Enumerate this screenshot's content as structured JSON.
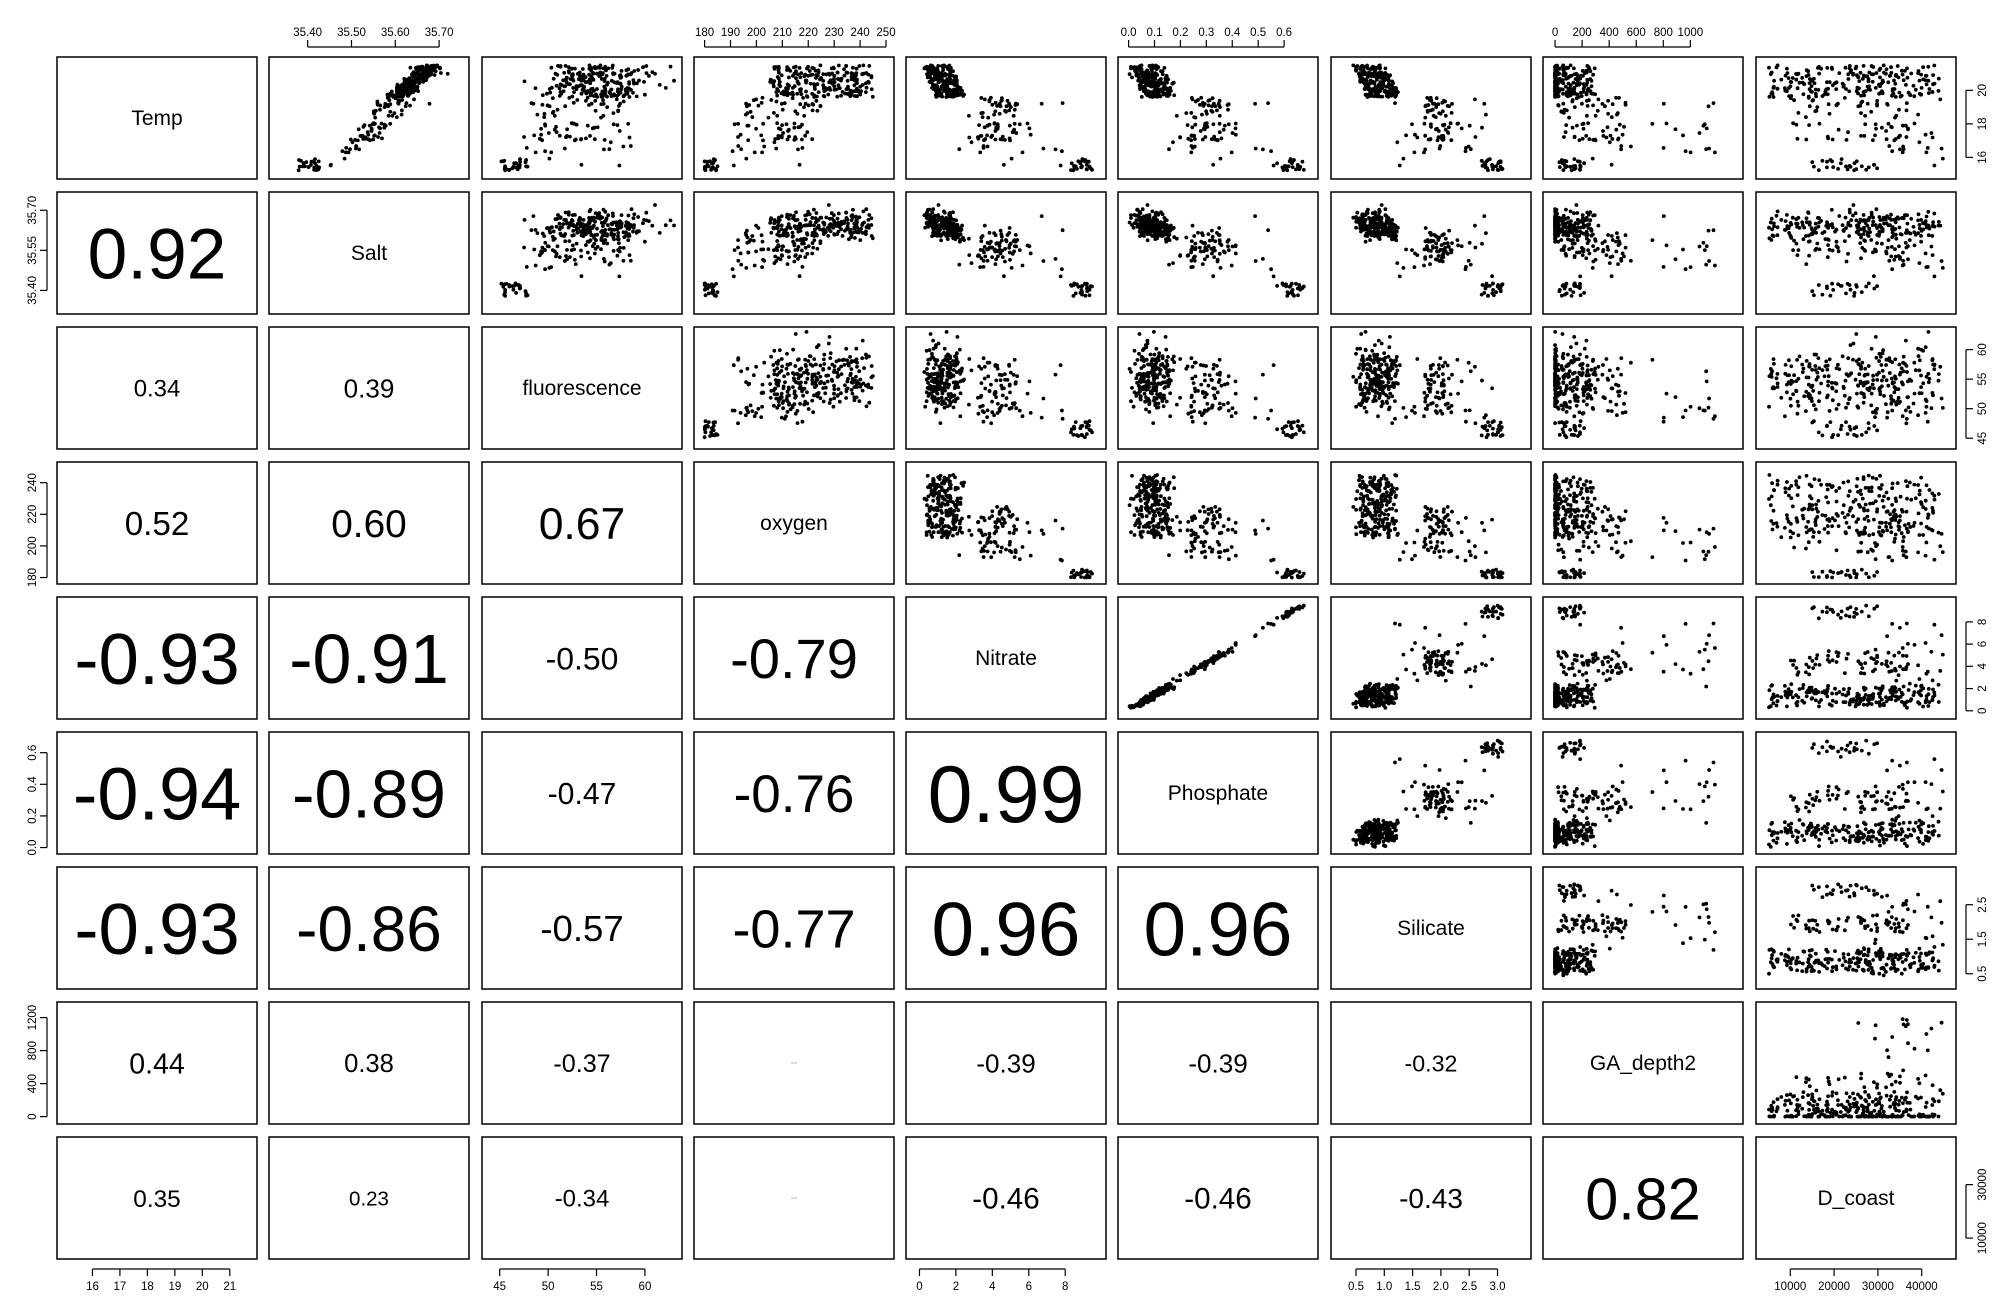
{
  "chart_data": {
    "type": "scatter",
    "subtype": "pairs-matrix",
    "variables": [
      "Temp",
      "Salt",
      "fluorescence",
      "oxygen",
      "Nitrate",
      "Phosphate",
      "Silicate",
      "GA_depth2",
      "D_coast"
    ],
    "ranges": {
      "Temp": [
        15,
        21.7
      ],
      "Salt": [
        35.33,
        35.75
      ],
      "fluorescence": [
        44,
        63
      ],
      "oxygen": [
        179,
        250
      ],
      "Nitrate": [
        -0.3,
        9.8
      ],
      "Phosphate": [
        -0.01,
        0.7
      ],
      "Silicate": [
        0.2,
        3.45
      ],
      "GA_depth2": [
        -30,
        1330
      ],
      "D_coast": [
        4000,
        46000
      ]
    },
    "ticks": {
      "Temp": [
        16,
        17,
        18,
        19,
        20,
        21
      ],
      "Salt": [
        35.4,
        35.55,
        35.7
      ],
      "Salt_top": [
        35.4,
        35.5,
        35.6,
        35.7
      ],
      "fluorescence": [
        45,
        50,
        55,
        60
      ],
      "oxygen": [
        180,
        190,
        200,
        210,
        220,
        230,
        240,
        250
      ],
      "oxygen_left": [
        180,
        200,
        220,
        240
      ],
      "Nitrate": [
        0,
        2,
        4,
        6,
        8
      ],
      "Phosphate": [
        0.0,
        0.1,
        0.2,
        0.3,
        0.4,
        0.5,
        0.6
      ],
      "Phosphate_left": [
        0.0,
        0.2,
        0.4,
        0.6
      ],
      "Silicate": [
        0.5,
        1.0,
        1.5,
        2.0,
        2.5,
        3.0
      ],
      "Silicate_right": [
        0.5,
        1.5,
        2.5
      ],
      "GA_depth2": [
        0,
        200,
        400,
        600,
        800,
        1000
      ],
      "GA_depth2_left": [
        0,
        400,
        800,
        1200
      ],
      "D_coast": [
        10000,
        20000,
        30000,
        40000
      ],
      "D_coast_right": [
        10000,
        30000
      ]
    },
    "tick_labels": {
      "Temp": [
        "16",
        "17",
        "18",
        "19",
        "20",
        "21"
      ],
      "Temp_right": [
        "16",
        "18",
        "20"
      ],
      "Salt": [
        "35.40",
        "35.55",
        "35.70"
      ],
      "Salt_top": [
        "35.40",
        "35.50",
        "35.60",
        "35.70"
      ],
      "fluorescence": [
        "45",
        "50",
        "55",
        "60"
      ],
      "fluorescence_right": [
        "45",
        "50",
        "55",
        "60"
      ],
      "oxygen": [
        "180",
        "190",
        "200",
        "210",
        "220",
        "230",
        "240",
        "250"
      ],
      "oxygen_left": [
        "180",
        "200",
        "220",
        "240"
      ],
      "Nitrate": [
        "0",
        "2",
        "4",
        "6",
        "8"
      ],
      "Nitrate_right": [
        "0",
        "2",
        "4",
        "6",
        "8"
      ],
      "Phosphate": [
        "0.0",
        "0.1",
        "0.2",
        "0.3",
        "0.4",
        "0.5",
        "0.6"
      ],
      "Phosphate_left": [
        "0.0",
        "0.2",
        "0.4",
        "0.6"
      ],
      "Silicate": [
        "0.5",
        "1.0",
        "1.5",
        "2.0",
        "2.5",
        "3.0"
      ],
      "Silicate_right": [
        "0.5",
        "1.5",
        "2.5"
      ],
      "GA_depth2": [
        "0",
        "200",
        "400",
        "600",
        "800",
        "1000"
      ],
      "GA_depth2_left": [
        "0",
        "400",
        "800",
        "1200"
      ],
      "D_coast": [
        "10000",
        "20000",
        "30000",
        "40000"
      ],
      "D_coast_right": [
        "10000",
        "30000"
      ]
    },
    "correlations": [
      {
        "row": "Salt",
        "col": "Temp",
        "text": "0.92"
      },
      {
        "row": "fluorescence",
        "col": "Temp",
        "text": "0.34"
      },
      {
        "row": "fluorescence",
        "col": "Salt",
        "text": "0.39"
      },
      {
        "row": "oxygen",
        "col": "Temp",
        "text": "0.52"
      },
      {
        "row": "oxygen",
        "col": "Salt",
        "text": "0.60"
      },
      {
        "row": "oxygen",
        "col": "fluorescence",
        "text": "0.67"
      },
      {
        "row": "Nitrate",
        "col": "Temp",
        "text": "-0.93"
      },
      {
        "row": "Nitrate",
        "col": "Salt",
        "text": "-0.91"
      },
      {
        "row": "Nitrate",
        "col": "fluorescence",
        "text": "-0.50"
      },
      {
        "row": "Nitrate",
        "col": "oxygen",
        "text": "-0.79"
      },
      {
        "row": "Phosphate",
        "col": "Temp",
        "text": "-0.94"
      },
      {
        "row": "Phosphate",
        "col": "Salt",
        "text": "-0.89"
      },
      {
        "row": "Phosphate",
        "col": "fluorescence",
        "text": "-0.47"
      },
      {
        "row": "Phosphate",
        "col": "oxygen",
        "text": "-0.76"
      },
      {
        "row": "Phosphate",
        "col": "Nitrate",
        "text": "0.99"
      },
      {
        "row": "Silicate",
        "col": "Temp",
        "text": "-0.93"
      },
      {
        "row": "Silicate",
        "col": "Salt",
        "text": "-0.86"
      },
      {
        "row": "Silicate",
        "col": "fluorescence",
        "text": "-0.57"
      },
      {
        "row": "Silicate",
        "col": "oxygen",
        "text": "-0.77"
      },
      {
        "row": "Silicate",
        "col": "Nitrate",
        "text": "0.96"
      },
      {
        "row": "Silicate",
        "col": "Phosphate",
        "text": "0.96"
      },
      {
        "row": "GA_depth2",
        "col": "Temp",
        "text": "0.44"
      },
      {
        "row": "GA_depth2",
        "col": "Salt",
        "text": "0.38"
      },
      {
        "row": "GA_depth2",
        "col": "fluorescence",
        "text": "-0.37"
      },
      {
        "row": "GA_depth2",
        "col": "oxygen",
        "text": ""
      },
      {
        "row": "GA_depth2",
        "col": "Nitrate",
        "text": "-0.39"
      },
      {
        "row": "GA_depth2",
        "col": "Phosphate",
        "text": "-0.39"
      },
      {
        "row": "GA_depth2",
        "col": "Silicate",
        "text": "-0.32"
      },
      {
        "row": "D_coast",
        "col": "Temp",
        "text": "0.35"
      },
      {
        "row": "D_coast",
        "col": "Salt",
        "text": "0.23"
      },
      {
        "row": "D_coast",
        "col": "fluorescence",
        "text": "-0.34"
      },
      {
        "row": "D_coast",
        "col": "oxygen",
        "text": ""
      },
      {
        "row": "D_coast",
        "col": "Nitrate",
        "text": "-0.46"
      },
      {
        "row": "D_coast",
        "col": "Phosphate",
        "text": "-0.46"
      },
      {
        "row": "D_coast",
        "col": "Silicate",
        "text": "-0.43"
      },
      {
        "row": "D_coast",
        "col": "GA_depth2",
        "text": "0.82"
      }
    ]
  }
}
